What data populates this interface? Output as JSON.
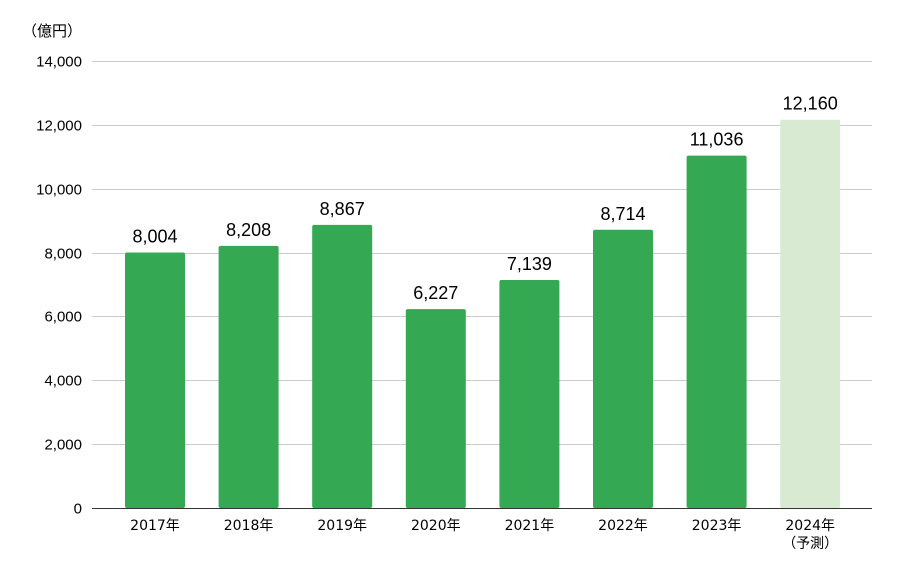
{
  "chart_data": {
    "type": "bar",
    "unit_label": "（億円）",
    "categories": [
      "2017年",
      "2018年",
      "2019年",
      "2020年",
      "2021年",
      "2022年",
      "2023年",
      "2024年"
    ],
    "category_sublabels": [
      "",
      "",
      "",
      "",
      "",
      "",
      "",
      "（予測）"
    ],
    "values": [
      8004,
      8208,
      8867,
      6227,
      7139,
      8714,
      11036,
      12160
    ],
    "value_labels": [
      "8,004",
      "8,208",
      "8,867",
      "6,227",
      "7,139",
      "8,714",
      "11,036",
      "12,160"
    ],
    "forecast": [
      false,
      false,
      false,
      false,
      false,
      false,
      false,
      true
    ],
    "yticks": [
      0,
      2000,
      4000,
      6000,
      8000,
      10000,
      12000,
      14000
    ],
    "ytick_labels": [
      "0",
      "2,000",
      "4,000",
      "6,000",
      "8,000",
      "10,000",
      "12,000",
      "14,000"
    ],
    "ylim": [
      0,
      14000
    ],
    "grid": true,
    "colors": {
      "bar": "#34a853",
      "forecast_bar": "#d9ead3",
      "grid": "#cccccc",
      "axis": "#333333"
    }
  }
}
